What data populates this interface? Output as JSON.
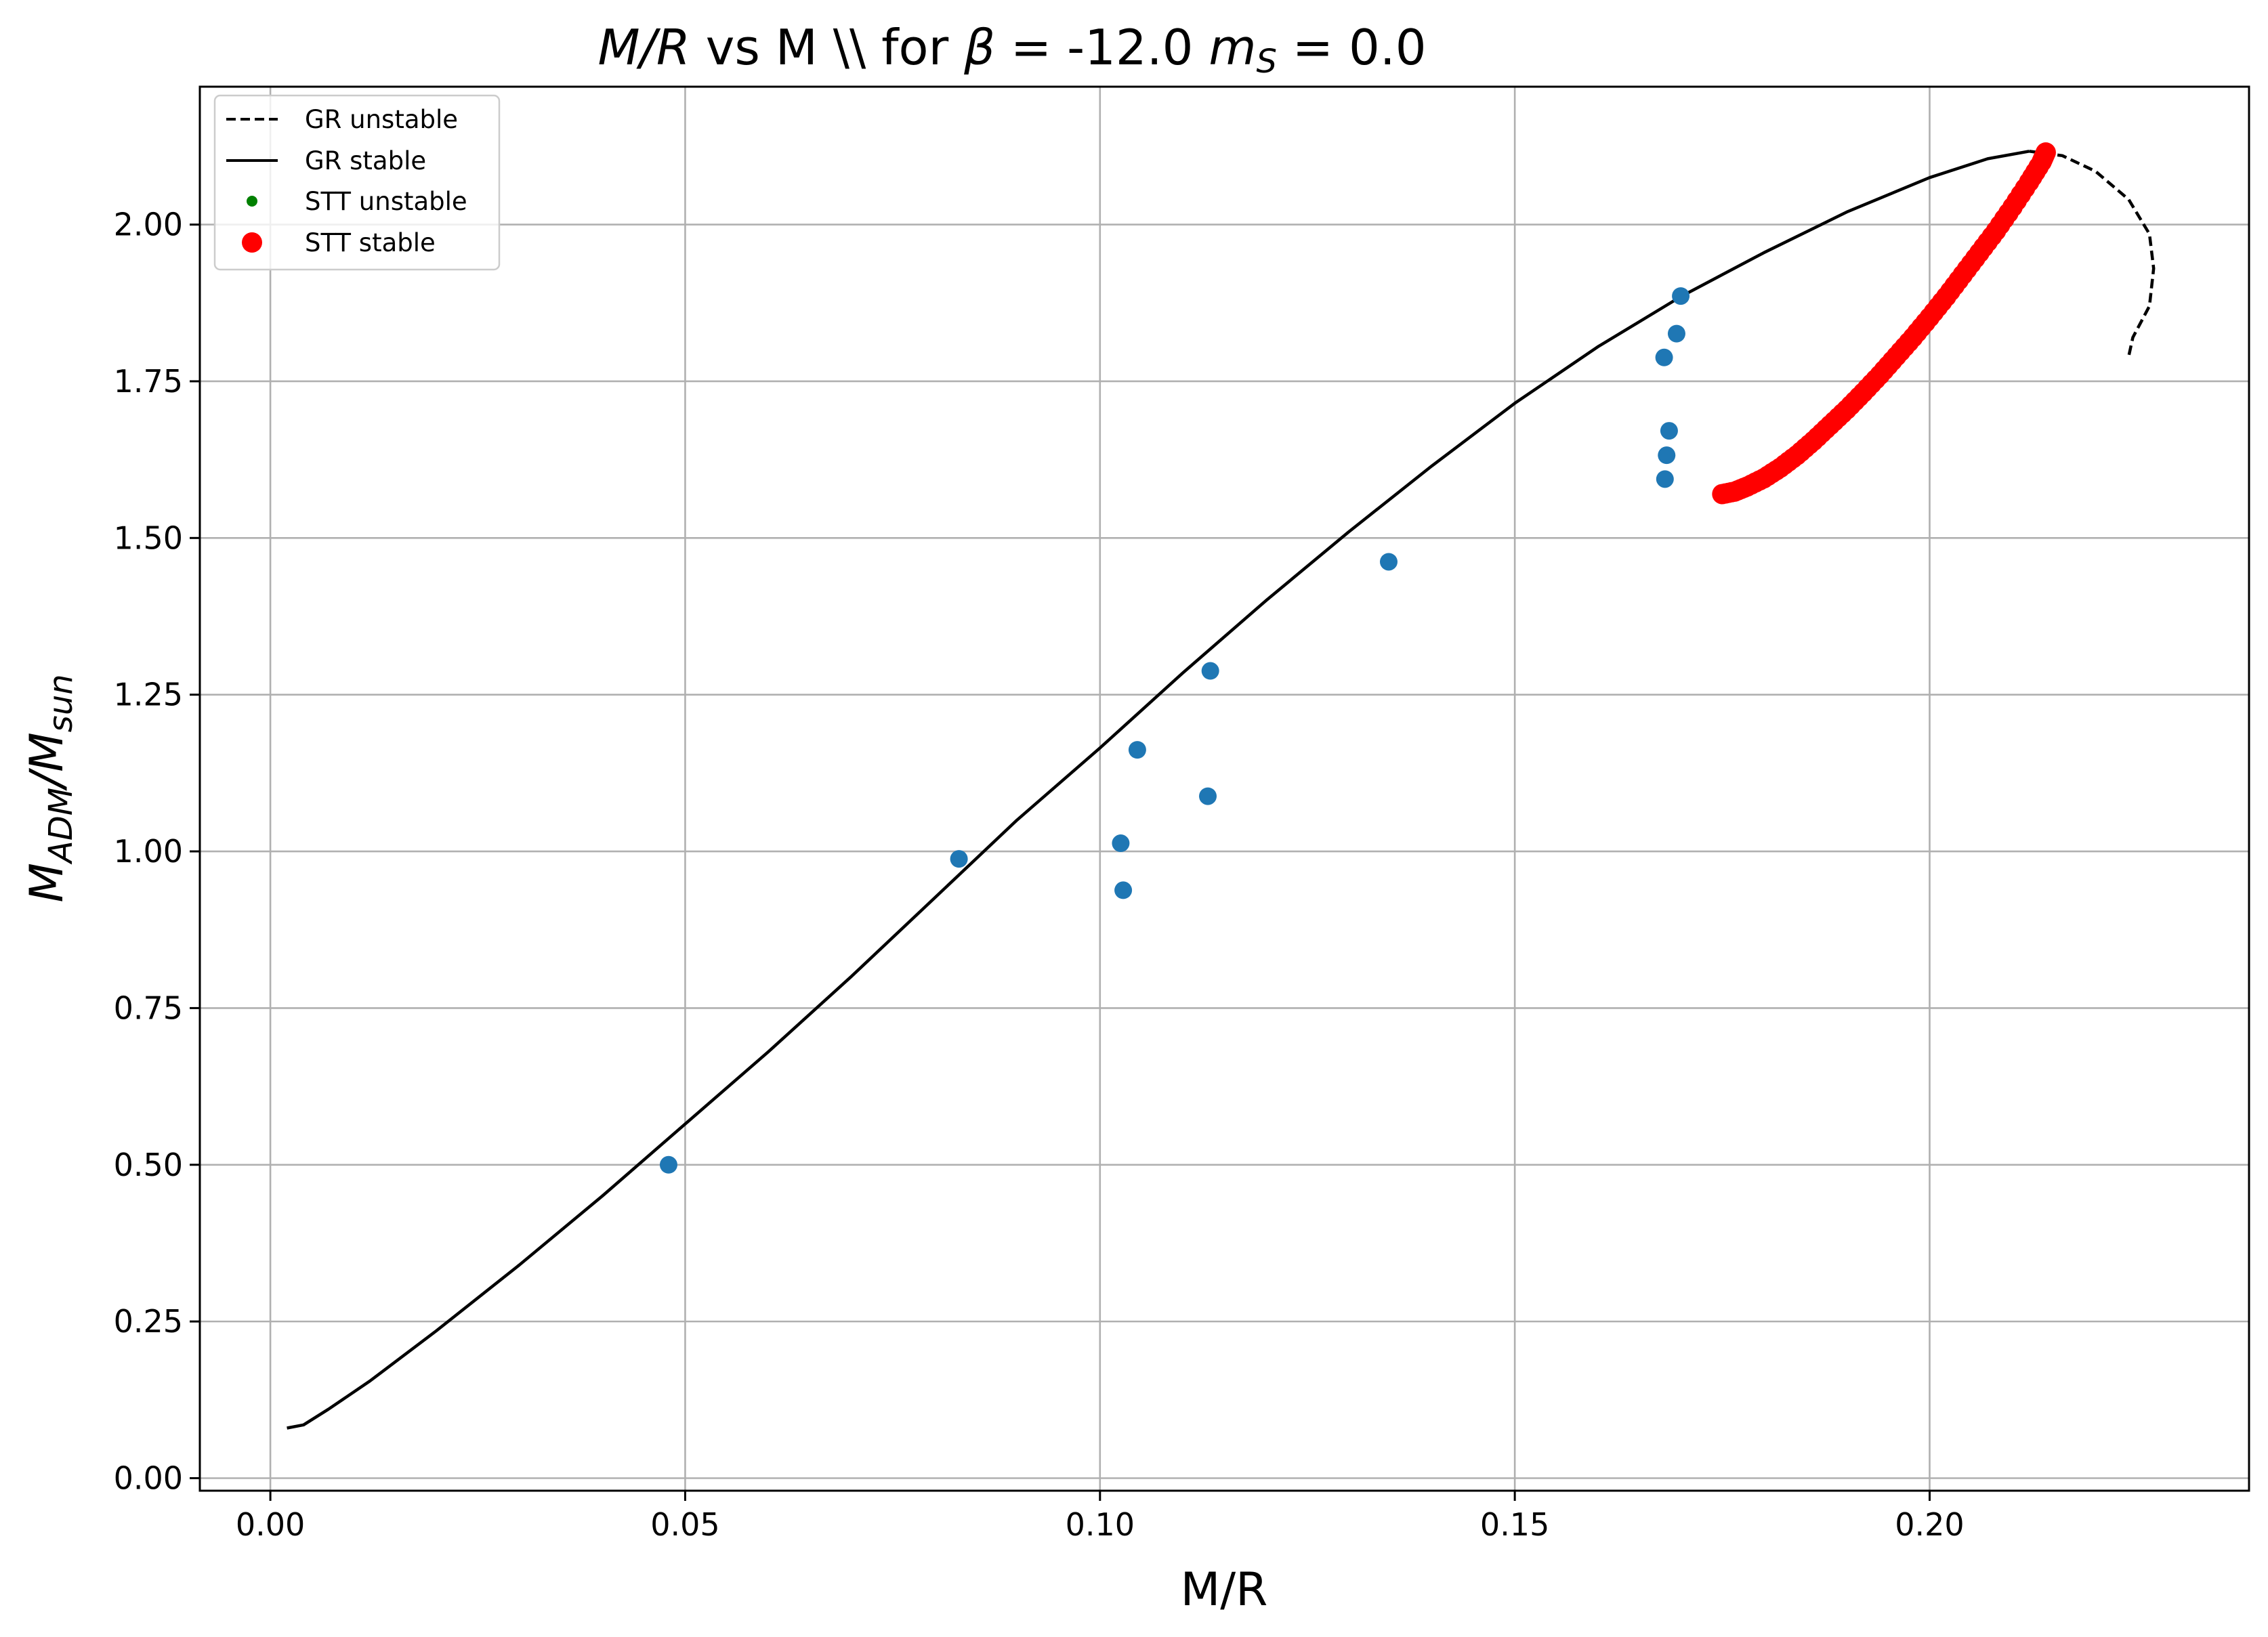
{
  "chart_data": {
    "type": "scatter",
    "title": {
      "prefix_italic": "M/R",
      "middle": " vs M \\\\ for ",
      "beta_symbol": "β",
      "beta_eq": " = -12.0 ",
      "ms_symbol": "m",
      "ms_sub": "S",
      "ms_eq": " = 0.0"
    },
    "xlabel": "M/R",
    "ylabel": {
      "main": "M",
      "sub1": "ADM",
      "slash": "/M",
      "sub2": "sun"
    },
    "xlim": [
      -0.0085,
      0.2385
    ],
    "ylim": [
      -0.02,
      2.22
    ],
    "x_ticks": [
      0.0,
      0.05,
      0.1,
      0.15,
      0.2
    ],
    "x_tick_labels": [
      "0.00",
      "0.05",
      "0.10",
      "0.15",
      "0.20"
    ],
    "y_ticks": [
      0.0,
      0.25,
      0.5,
      0.75,
      1.0,
      1.25,
      1.5,
      1.75,
      2.0
    ],
    "y_tick_labels": [
      "0.00",
      "0.25",
      "0.50",
      "0.75",
      "1.00",
      "1.25",
      "1.50",
      "1.75",
      "2.00"
    ],
    "grid": true,
    "legend_position": "top-left",
    "legend": [
      {
        "label": "GR unstable",
        "style": "dashed-line",
        "color": "#000000"
      },
      {
        "label": "GR stable",
        "style": "solid-line",
        "color": "#000000"
      },
      {
        "label": "STT unstable",
        "style": "small-dot",
        "color": "#008000"
      },
      {
        "label": "STT stable",
        "style": "large-dot",
        "color": "#ff0000"
      }
    ],
    "series": [
      {
        "name": "GR stable",
        "style": "solid-line",
        "color": "#000000",
        "points": [
          [
            0.002,
            0.08
          ],
          [
            0.004,
            0.085
          ],
          [
            0.007,
            0.11
          ],
          [
            0.012,
            0.155
          ],
          [
            0.02,
            0.235
          ],
          [
            0.03,
            0.34
          ],
          [
            0.04,
            0.45
          ],
          [
            0.05,
            0.565
          ],
          [
            0.06,
            0.68
          ],
          [
            0.07,
            0.8
          ],
          [
            0.08,
            0.925
          ],
          [
            0.09,
            1.05
          ],
          [
            0.1,
            1.165
          ],
          [
            0.11,
            1.285
          ],
          [
            0.12,
            1.4
          ],
          [
            0.13,
            1.51
          ],
          [
            0.14,
            1.615
          ],
          [
            0.15,
            1.715
          ],
          [
            0.16,
            1.805
          ],
          [
            0.17,
            1.885
          ],
          [
            0.18,
            1.955
          ],
          [
            0.19,
            2.02
          ],
          [
            0.2,
            2.075
          ],
          [
            0.207,
            2.105
          ],
          [
            0.212,
            2.117
          ]
        ]
      },
      {
        "name": "GR unstable",
        "style": "dashed-line",
        "color": "#000000",
        "points": [
          [
            0.212,
            2.117
          ],
          [
            0.216,
            2.11
          ],
          [
            0.22,
            2.085
          ],
          [
            0.224,
            2.04
          ],
          [
            0.2265,
            1.985
          ],
          [
            0.227,
            1.93
          ],
          [
            0.2265,
            1.87
          ],
          [
            0.2245,
            1.82
          ],
          [
            0.224,
            1.79
          ]
        ]
      },
      {
        "name": "STT stable",
        "style": "large-dot",
        "color": "#ff0000",
        "points": [
          [
            0.175,
            1.57
          ],
          [
            0.1765,
            1.574
          ],
          [
            0.178,
            1.582
          ],
          [
            0.18,
            1.595
          ],
          [
            0.182,
            1.612
          ],
          [
            0.184,
            1.632
          ],
          [
            0.186,
            1.655
          ],
          [
            0.188,
            1.68
          ],
          [
            0.19,
            1.705
          ],
          [
            0.192,
            1.732
          ],
          [
            0.194,
            1.76
          ],
          [
            0.196,
            1.79
          ],
          [
            0.198,
            1.82
          ],
          [
            0.2,
            1.852
          ],
          [
            0.202,
            1.885
          ],
          [
            0.204,
            1.92
          ],
          [
            0.206,
            1.955
          ],
          [
            0.208,
            1.99
          ],
          [
            0.21,
            2.028
          ],
          [
            0.212,
            2.068
          ],
          [
            0.2135,
            2.1
          ],
          [
            0.214,
            2.115
          ]
        ]
      },
      {
        "name": "",
        "style": "dot",
        "color": "#1f77b4",
        "points": [
          [
            0.048,
            0.5
          ],
          [
            0.083,
            0.988
          ],
          [
            0.1025,
            1.013
          ],
          [
            0.1028,
            0.938
          ],
          [
            0.1045,
            1.162
          ],
          [
            0.113,
            1.088
          ],
          [
            0.1133,
            1.288
          ],
          [
            0.1348,
            1.462
          ],
          [
            0.168,
            1.788
          ],
          [
            0.1695,
            1.826
          ],
          [
            0.17,
            1.886
          ],
          [
            0.1686,
            1.671
          ],
          [
            0.1683,
            1.632
          ],
          [
            0.1681,
            1.594
          ]
        ]
      }
    ]
  }
}
